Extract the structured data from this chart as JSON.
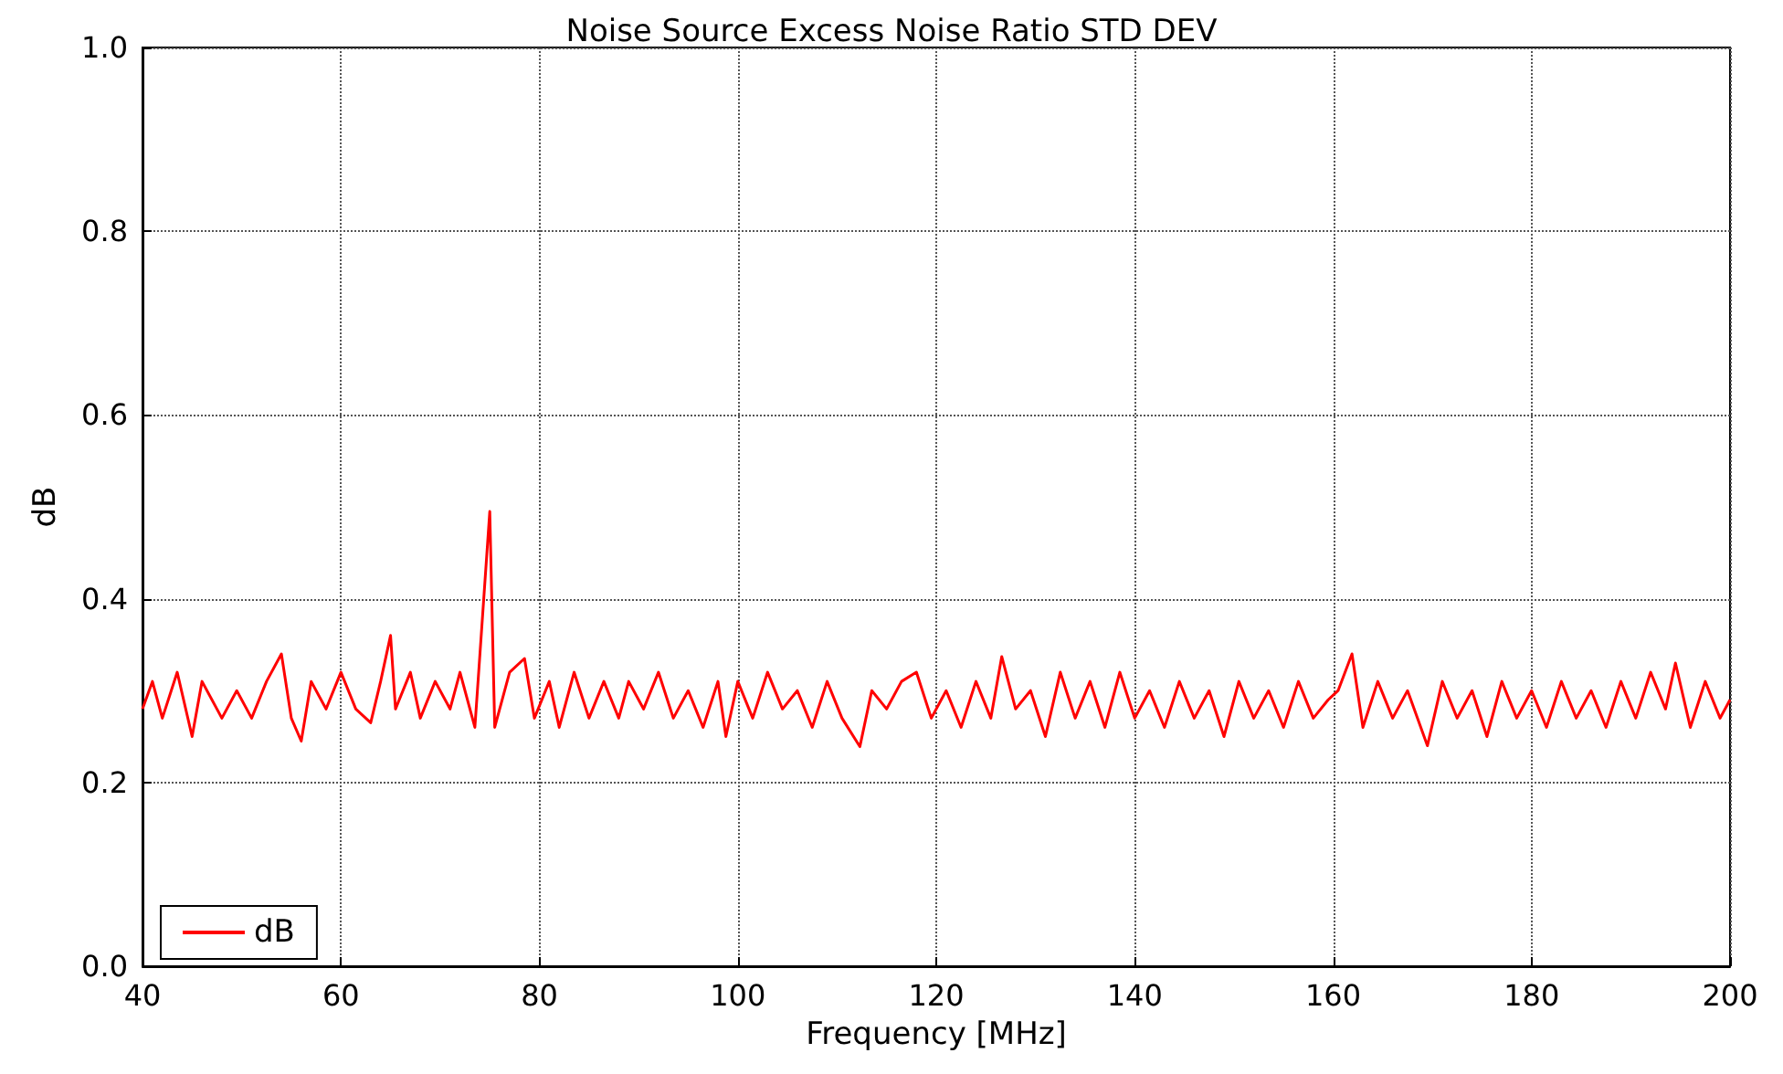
{
  "chart_data": {
    "type": "line",
    "title": "Noise Source Excess Noise Ratio STD DEV",
    "xlabel": "Frequency [MHz]",
    "ylabel": "dB",
    "x": [
      40,
      41,
      42,
      43.5,
      45,
      46,
      48,
      49.5,
      51,
      52.5,
      54,
      55,
      56,
      57,
      58.5,
      60,
      61.5,
      63,
      64,
      65,
      65.5,
      67,
      68,
      69.5,
      71,
      72,
      73.5,
      75,
      75.5,
      77,
      78.5,
      79.5,
      81,
      82,
      83.5,
      85,
      86.5,
      88,
      89,
      90.5,
      92,
      93.5,
      95,
      96.5,
      98,
      98.8,
      100,
      101.5,
      103,
      104.5,
      106,
      107.5,
      109,
      110.5,
      112.3,
      113.5,
      115,
      116.5,
      118,
      119.5,
      121,
      122.5,
      124,
      125.5,
      126.6,
      128,
      129.5,
      131,
      132.5,
      134,
      135.5,
      137,
      138.5,
      140,
      141.5,
      143,
      144.5,
      146,
      147.5,
      149,
      150.5,
      152,
      153.5,
      155,
      156.5,
      158,
      159.5,
      160.5,
      161.9,
      163,
      164.5,
      166,
      167.5,
      169.5,
      171,
      172.5,
      174,
      175.5,
      177,
      178.5,
      180,
      181.5,
      183,
      184.5,
      186,
      187.5,
      189,
      190.5,
      192,
      193.5,
      194.5,
      196,
      197.5,
      199,
      200
    ],
    "series": [
      {
        "name": "dB",
        "color": "#ff0000",
        "values": [
          0.28,
          0.31,
          0.27,
          0.32,
          0.25,
          0.31,
          0.27,
          0.3,
          0.27,
          0.31,
          0.34,
          0.27,
          0.245,
          0.31,
          0.28,
          0.32,
          0.28,
          0.265,
          0.31,
          0.36,
          0.28,
          0.32,
          0.27,
          0.31,
          0.28,
          0.32,
          0.26,
          0.495,
          0.26,
          0.32,
          0.335,
          0.27,
          0.31,
          0.26,
          0.32,
          0.27,
          0.31,
          0.27,
          0.31,
          0.28,
          0.32,
          0.27,
          0.3,
          0.26,
          0.31,
          0.25,
          0.31,
          0.27,
          0.32,
          0.28,
          0.3,
          0.26,
          0.31,
          0.27,
          0.239,
          0.3,
          0.28,
          0.31,
          0.32,
          0.27,
          0.3,
          0.26,
          0.31,
          0.27,
          0.337,
          0.28,
          0.3,
          0.25,
          0.32,
          0.27,
          0.31,
          0.26,
          0.32,
          0.27,
          0.3,
          0.26,
          0.31,
          0.27,
          0.3,
          0.25,
          0.31,
          0.27,
          0.3,
          0.26,
          0.31,
          0.27,
          0.29,
          0.3,
          0.34,
          0.26,
          0.31,
          0.27,
          0.3,
          0.24,
          0.31,
          0.27,
          0.3,
          0.25,
          0.31,
          0.27,
          0.3,
          0.26,
          0.31,
          0.27,
          0.3,
          0.26,
          0.31,
          0.27,
          0.32,
          0.28,
          0.33,
          0.26,
          0.31,
          0.27,
          0.29
        ]
      }
    ],
    "xlim": [
      40,
      200
    ],
    "xticks": [
      40,
      60,
      80,
      100,
      120,
      140,
      160,
      180,
      200
    ],
    "ylim": [
      0,
      1
    ],
    "yticks": [
      {
        "value": 0,
        "label": "0.0"
      },
      0.2,
      0.4,
      0.6,
      0.8,
      {
        "value": 1,
        "label": "1.0"
      }
    ],
    "grid": true,
    "legend": "bottom left",
    "marker": "none",
    "line_style": "solid"
  }
}
